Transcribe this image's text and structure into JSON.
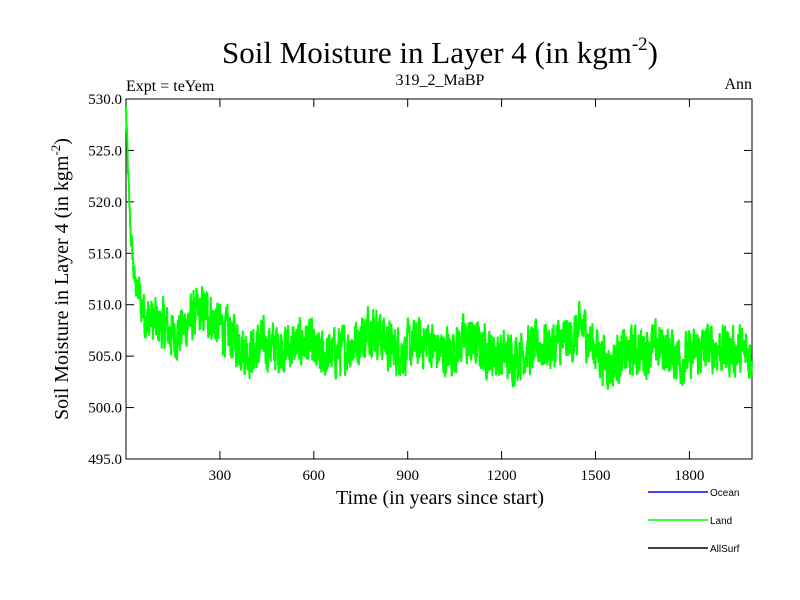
{
  "chart_data": {
    "type": "line",
    "title": "Soil Moisture in Layer 4 (in kgm",
    "title_superscript": "-2",
    "title_suffix": ")",
    "subtitle_left": "Expt = teYem",
    "subtitle_center": "319_2_MaBP",
    "subtitle_right": "Ann",
    "xlabel": "Time (in years since start)",
    "ylabel": "Soil Moisture in Layer 4 (in kgm",
    "ylabel_superscript": "-2",
    "ylabel_suffix": ")",
    "xlim": [
      0,
      2000
    ],
    "ylim": [
      495,
      530
    ],
    "xticks": [
      300,
      600,
      900,
      1200,
      1500,
      1800
    ],
    "xtick_labels": [
      "300",
      "600",
      "900",
      "1200",
      "1500",
      "1800"
    ],
    "yticks": [
      495,
      500,
      505,
      510,
      515,
      520,
      525,
      530
    ],
    "ytick_labels": [
      "495.0",
      "500.0",
      "505.0",
      "510.0",
      "515.0",
      "520.0",
      "525.0",
      "530.0"
    ],
    "legend": [
      {
        "name": "Ocean",
        "color": "#0000ff"
      },
      {
        "name": "Land",
        "color": "#00ff00"
      },
      {
        "name": "AllSurf",
        "color": "#000000"
      }
    ],
    "series": [
      {
        "name": "Land",
        "color": "#00ff00",
        "x": [
          0,
          5,
          10,
          15,
          20,
          25,
          30,
          40,
          50,
          60,
          80,
          100,
          120,
          150,
          180,
          200,
          230,
          250,
          270,
          300,
          330,
          360,
          380,
          400,
          430,
          460,
          500,
          540,
          580,
          610,
          640,
          680,
          720,
          760,
          780,
          800,
          840,
          880,
          920,
          960,
          1000,
          1040,
          1080,
          1120,
          1160,
          1200,
          1240,
          1280,
          1320,
          1360,
          1400,
          1440,
          1460,
          1480,
          1520,
          1550,
          1580,
          1620,
          1660,
          1700,
          1740,
          1780,
          1800,
          1840,
          1880,
          1920,
          1960,
          1990,
          2000
        ],
        "values": [
          529,
          524,
          520,
          517,
          515,
          513,
          512,
          511,
          510,
          509,
          508.5,
          508,
          508,
          507,
          507.5,
          508.5,
          509,
          509.5,
          509,
          508,
          507,
          506.5,
          505.5,
          505.5,
          506,
          506,
          505.8,
          506,
          506.5,
          505,
          505,
          505.5,
          506,
          507,
          508,
          507.5,
          506,
          505.5,
          506,
          506.5,
          505.5,
          505.5,
          506.5,
          506,
          505.5,
          505,
          505,
          505.5,
          506,
          506,
          506.5,
          507,
          508,
          506.5,
          505,
          504,
          505,
          505.5,
          505.5,
          506,
          505.5,
          504.5,
          505,
          505.5,
          506,
          505.5,
          505.5,
          505,
          505
        ]
      }
    ]
  }
}
